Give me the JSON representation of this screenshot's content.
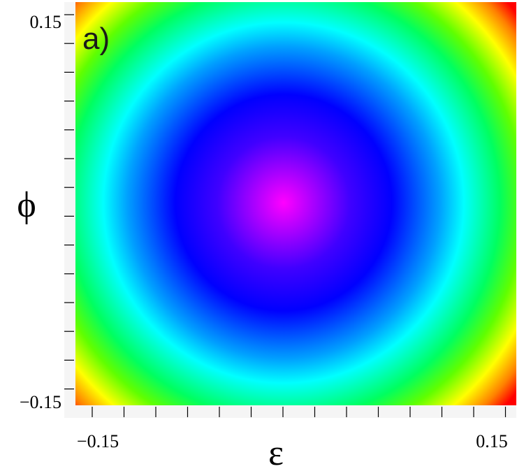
{
  "chart_data": {
    "type": "heatmap",
    "panel_label": "a)",
    "xlabel": "ε",
    "ylabel": "ϕ",
    "xlim": [
      -0.15,
      0.15
    ],
    "ylim": [
      -0.15,
      0.15
    ],
    "x_tick_labels": [
      "−0.15",
      "0.15"
    ],
    "y_tick_labels": [
      "0.15",
      "−0.15"
    ],
    "center": [
      0.0,
      0.0
    ],
    "colormap": [
      "#ff00ff",
      "#0000ff",
      "#00ffff",
      "#00ff00",
      "#ffff00",
      "#ff0000"
    ],
    "description_of_field": "radially symmetric, minimum at center"
  }
}
